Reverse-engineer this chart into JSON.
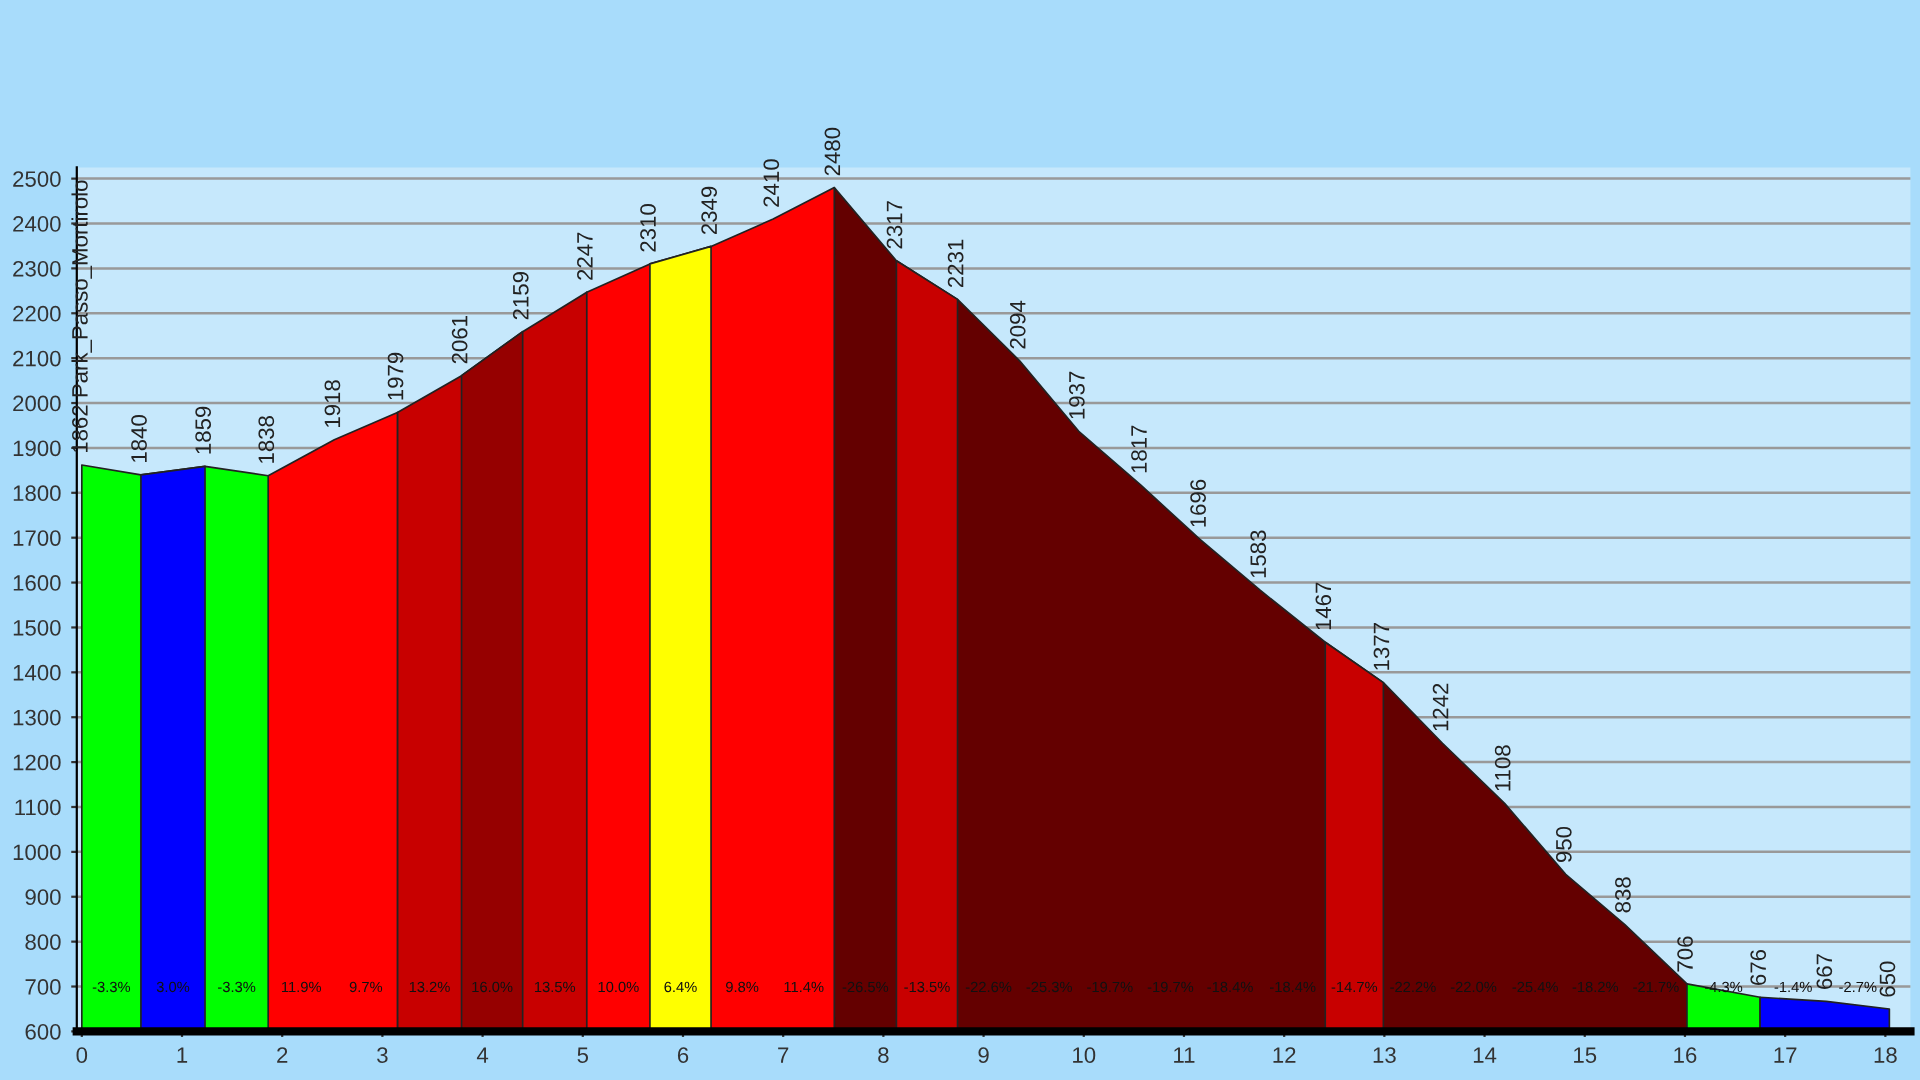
{
  "chart_data": {
    "type": "area",
    "x": [
      0,
      0.59,
      1.23,
      1.86,
      2.52,
      3.15,
      3.79,
      4.4,
      5.04,
      5.67,
      6.28,
      6.9,
      7.51,
      8.13,
      8.74,
      9.36,
      9.95,
      10.57,
      11.16,
      11.76,
      12.41,
      12.99,
      13.58,
      14.2,
      14.81,
      15.4,
      16.02,
      16.75,
      17.41,
      18.04
    ],
    "series": [
      {
        "color": "#640000",
        "values": [
          null,
          null,
          null,
          null,
          null,
          null,
          null,
          null,
          null,
          null,
          null,
          null,
          2480,
          2317,
          2231,
          2094,
          1937,
          1817,
          1696,
          1583,
          1467,
          1377,
          1242,
          1108,
          950,
          838,
          706,
          null,
          null,
          null
        ]
      },
      {
        "color": "#c80000",
        "values": [
          null,
          null,
          null,
          null,
          null,
          1979,
          2061,
          2159,
          2247,
          null,
          null,
          null,
          null,
          2317,
          2231,
          null,
          null,
          null,
          null,
          null,
          1467,
          1377,
          null,
          null,
          null,
          null,
          null,
          null,
          null,
          null
        ]
      },
      {
        "color": "#960000",
        "values": [
          null,
          null,
          null,
          null,
          null,
          null,
          2061,
          2159,
          null,
          null,
          null,
          null,
          null,
          null,
          null,
          null,
          null,
          null,
          null,
          null,
          null,
          null,
          null,
          null,
          null,
          null,
          null,
          null,
          null,
          null
        ]
      },
      {
        "color": "#ff0000",
        "values": [
          null,
          null,
          null,
          1838,
          1918,
          1979,
          null,
          null,
          2247,
          2310,
          2349,
          2410,
          2480,
          null,
          null,
          null,
          null,
          null,
          null,
          null,
          null,
          null,
          null,
          null,
          null,
          null,
          null,
          null,
          null,
          null
        ]
      },
      {
        "color": "#ffff00",
        "values": [
          null,
          null,
          null,
          null,
          null,
          null,
          null,
          null,
          null,
          2310,
          2349,
          null,
          null,
          null,
          null,
          null,
          null,
          null,
          null,
          null,
          null,
          null,
          null,
          null,
          null,
          null,
          null,
          null,
          null,
          null
        ]
      },
      {
        "color": "#00ff00",
        "values": [
          1862,
          1840,
          1859,
          1838,
          null,
          null,
          null,
          null,
          null,
          null,
          null,
          null,
          null,
          null,
          null,
          null,
          null,
          null,
          null,
          null,
          null,
          null,
          null,
          null,
          null,
          null,
          706,
          676,
          null,
          null
        ]
      },
      {
        "color": "#0000ff",
        "values": [
          null,
          1840,
          1859,
          null,
          null,
          null,
          null,
          null,
          null,
          null,
          null,
          null,
          null,
          null,
          null,
          null,
          null,
          null,
          null,
          null,
          null,
          null,
          null,
          null,
          null,
          null,
          null,
          676,
          667,
          650
        ]
      }
    ],
    "value_labels": [
      "1862 Park_Passo_Mortirolo",
      "1840",
      "1859",
      "1838",
      "1918",
      "1979",
      "2061",
      "2159",
      "2247",
      "2310",
      "2349",
      "2410",
      "2480",
      "2317",
      "2231",
      "2094",
      "1937",
      "1817",
      "1696",
      "1583",
      "1467",
      "1377",
      "1242",
      "1108",
      "950",
      "838",
      "706",
      "676",
      "667",
      "650"
    ],
    "annotations": [
      "-3.3%",
      "3.0%",
      "-3.3%",
      "11.9%",
      "9.7%",
      "13.2%",
      "16.0%",
      "13.5%",
      "10.0%",
      "6.4%",
      "9.8%",
      "11.4%",
      "-26.5%",
      "-13.5%",
      "-22.6%",
      "-25.3%",
      "-19.7%",
      "-19.7%",
      "-18.4%",
      "-18.4%",
      "-14.7%",
      "-22.2%",
      "-22.0%",
      "-25.4%",
      "-18.2%",
      "-21.7%",
      "-4.3%",
      "-1.4%",
      "-2.7%"
    ],
    "xlim": [
      -0.05,
      18.25
    ],
    "xticks": [
      0,
      1,
      2,
      3,
      4,
      5,
      6,
      7,
      8,
      9,
      10,
      11,
      12,
      13,
      14,
      15,
      16,
      17,
      18
    ],
    "ylim": [
      600,
      2525
    ],
    "yticks": [
      600,
      700,
      800,
      900,
      1000,
      1100,
      1200,
      1300,
      1400,
      1500,
      1600,
      1700,
      1800,
      1900,
      2000,
      2100,
      2200,
      2300,
      2400,
      2500
    ],
    "grid": "y"
  }
}
